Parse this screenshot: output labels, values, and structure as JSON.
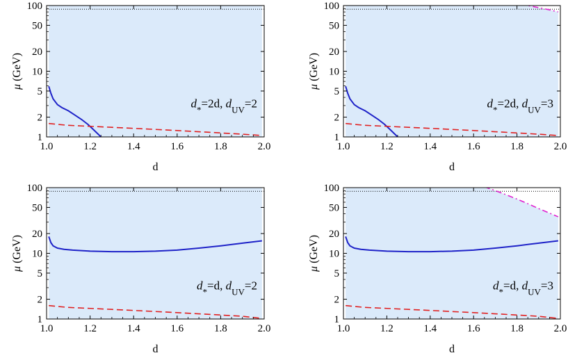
{
  "colors": {
    "region_fill": "#dbeafa",
    "blue_curve": "#1e22c8",
    "red_curve": "#e02020",
    "magenta_curve": "#e020d0",
    "dotted_line": "#000000"
  },
  "chart_data": [
    {
      "type": "line",
      "panel": "top-left",
      "xlabel": "d",
      "ylabel": "μ (GeV)",
      "annotation": {
        "dstar": "=2d, ",
        "duv": "=2"
      },
      "xlim": [
        1.0,
        2.0
      ],
      "ylim": [
        1,
        100
      ],
      "yscale": "log",
      "xticks": [
        "1.0",
        "1.2",
        "1.4",
        "1.6",
        "1.8",
        "2.0"
      ],
      "yticks": [
        "1",
        "2",
        "5",
        "10",
        "20",
        "50",
        "100"
      ],
      "shaded_region": {
        "x": [
          1.01,
          1.99
        ],
        "y": [
          1,
          88
        ]
      },
      "dotted_hline": 88,
      "series": [
        {
          "style": "solid",
          "color": "blue_curve",
          "x": [
            1.01,
            1.02,
            1.03,
            1.05,
            1.07,
            1.1,
            1.13,
            1.16,
            1.19,
            1.22,
            1.25
          ],
          "y": [
            5.9,
            4.6,
            3.8,
            3.1,
            2.8,
            2.5,
            2.15,
            1.85,
            1.55,
            1.25,
            1.0
          ]
        },
        {
          "style": "dashed",
          "color": "red_curve",
          "x": [
            1.01,
            1.1,
            1.2,
            1.3,
            1.4,
            1.5,
            1.6,
            1.7,
            1.8,
            1.9,
            1.99
          ],
          "y": [
            1.6,
            1.5,
            1.45,
            1.4,
            1.35,
            1.3,
            1.25,
            1.2,
            1.15,
            1.1,
            1.05
          ]
        }
      ]
    },
    {
      "type": "line",
      "panel": "top-right",
      "xlabel": "d",
      "ylabel": "μ (GeV)",
      "annotation": {
        "dstar": "=2d, ",
        "duv": "=3"
      },
      "xlim": [
        1.0,
        2.0
      ],
      "ylim": [
        1,
        100
      ],
      "yscale": "log",
      "xticks": [
        "1.0",
        "1.2",
        "1.4",
        "1.6",
        "1.8",
        "2.0"
      ],
      "yticks": [
        "1",
        "2",
        "5",
        "10",
        "20",
        "50",
        "100"
      ],
      "shaded_region": {
        "x": [
          1.01,
          1.99
        ],
        "y": [
          1,
          88
        ]
      },
      "white_region_above": {
        "x": [
          1.76,
          1.99
        ],
        "boundary_series": "dashdot"
      },
      "dotted_hline": 88,
      "series": [
        {
          "style": "solid",
          "color": "blue_curve",
          "x": [
            1.01,
            1.02,
            1.03,
            1.05,
            1.07,
            1.1,
            1.13,
            1.16,
            1.19,
            1.22,
            1.25
          ],
          "y": [
            5.9,
            4.6,
            3.8,
            3.1,
            2.8,
            2.5,
            2.15,
            1.85,
            1.55,
            1.25,
            1.0
          ]
        },
        {
          "style": "dashed",
          "color": "red_curve",
          "x": [
            1.01,
            1.1,
            1.2,
            1.3,
            1.4,
            1.5,
            1.6,
            1.7,
            1.8,
            1.9,
            1.99
          ],
          "y": [
            1.6,
            1.5,
            1.45,
            1.4,
            1.35,
            1.3,
            1.25,
            1.2,
            1.15,
            1.1,
            1.05
          ]
        },
        {
          "style": "dashdot",
          "color": "magenta_curve",
          "x": [
            1.76,
            1.8,
            1.85,
            1.9,
            1.95,
            1.99
          ],
          "y": [
            115,
            108,
            100,
            93,
            86,
            80
          ]
        }
      ]
    },
    {
      "type": "line",
      "panel": "bottom-left",
      "xlabel": "d",
      "ylabel": "μ (GeV)",
      "annotation": {
        "dstar": "=d, ",
        "duv": "=2"
      },
      "xlim": [
        1.0,
        2.0
      ],
      "ylim": [
        1,
        100
      ],
      "yscale": "log",
      "xticks": [
        "1.0",
        "1.2",
        "1.4",
        "1.6",
        "1.8",
        "2.0"
      ],
      "yticks": [
        "1",
        "2",
        "5",
        "10",
        "20",
        "50",
        "100"
      ],
      "shaded_region": {
        "x": [
          1.01,
          1.99
        ],
        "y": [
          1,
          88
        ]
      },
      "dotted_hline": 88,
      "series": [
        {
          "style": "solid",
          "color": "blue_curve",
          "x": [
            1.01,
            1.02,
            1.03,
            1.05,
            1.08,
            1.12,
            1.2,
            1.3,
            1.4,
            1.5,
            1.6,
            1.7,
            1.8,
            1.9,
            1.99
          ],
          "y": [
            18,
            14.5,
            13,
            12,
            11.5,
            11.2,
            10.8,
            10.6,
            10.6,
            10.8,
            11.2,
            12,
            13,
            14.3,
            15.5
          ]
        },
        {
          "style": "dashed",
          "color": "red_curve",
          "x": [
            1.01,
            1.1,
            1.2,
            1.3,
            1.4,
            1.5,
            1.6,
            1.7,
            1.8,
            1.9,
            1.99
          ],
          "y": [
            1.6,
            1.5,
            1.45,
            1.4,
            1.35,
            1.3,
            1.25,
            1.2,
            1.15,
            1.1,
            1.02
          ]
        }
      ]
    },
    {
      "type": "line",
      "panel": "bottom-right",
      "xlabel": "d",
      "ylabel": "μ (GeV)",
      "annotation": {
        "dstar": "=d, ",
        "duv": "=3"
      },
      "xlim": [
        1.0,
        2.0
      ],
      "ylim": [
        1,
        100
      ],
      "yscale": "log",
      "xticks": [
        "1.0",
        "1.2",
        "1.4",
        "1.6",
        "1.8",
        "2.0"
      ],
      "yticks": [
        "1",
        "2",
        "5",
        "10",
        "20",
        "50",
        "100"
      ],
      "shaded_region": {
        "x": [
          1.01,
          1.99
        ],
        "y": [
          1,
          88
        ]
      },
      "white_region_above": {
        "x": [
          1.65,
          1.99
        ],
        "boundary_series": "dashdot"
      },
      "dotted_hline": 88,
      "series": [
        {
          "style": "solid",
          "color": "blue_curve",
          "x": [
            1.01,
            1.02,
            1.03,
            1.05,
            1.08,
            1.12,
            1.2,
            1.3,
            1.4,
            1.5,
            1.6,
            1.7,
            1.8,
            1.9,
            1.99
          ],
          "y": [
            18,
            14.5,
            13,
            12,
            11.5,
            11.2,
            10.8,
            10.6,
            10.6,
            10.8,
            11.2,
            12,
            13,
            14.3,
            15.5
          ]
        },
        {
          "style": "dashed",
          "color": "red_curve",
          "x": [
            1.01,
            1.1,
            1.2,
            1.3,
            1.4,
            1.5,
            1.6,
            1.7,
            1.8,
            1.9,
            1.99
          ],
          "y": [
            1.6,
            1.5,
            1.45,
            1.4,
            1.35,
            1.3,
            1.25,
            1.2,
            1.15,
            1.1,
            1.02
          ]
        },
        {
          "style": "dashdot",
          "color": "magenta_curve",
          "x": [
            1.65,
            1.7,
            1.75,
            1.8,
            1.85,
            1.9,
            1.95,
            1.99
          ],
          "y": [
            103,
            90,
            78,
            67,
            57,
            48,
            41,
            36
          ]
        }
      ]
    }
  ]
}
